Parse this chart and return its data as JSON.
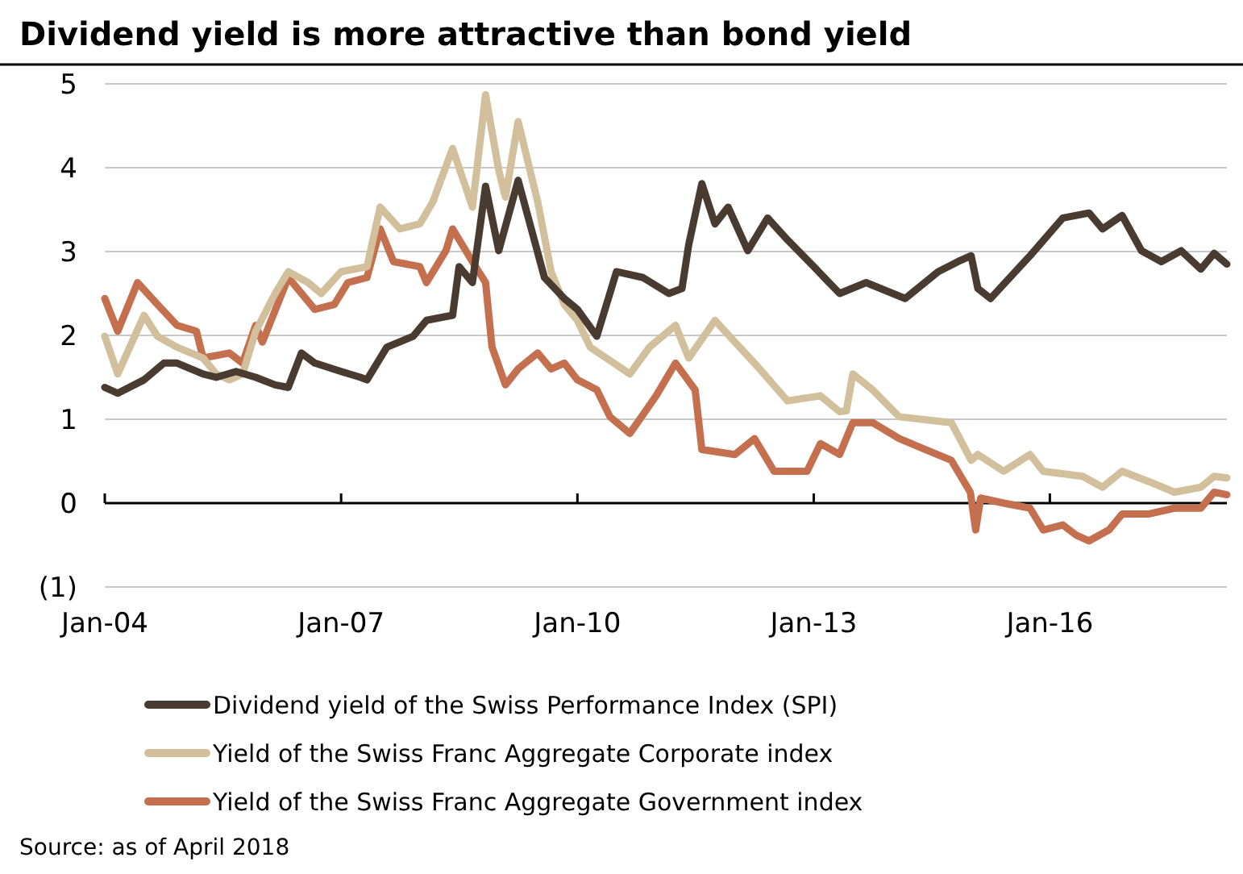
{
  "chart_data": {
    "type": "line",
    "title": "Dividend yield is more attractive than bond yield",
    "xlim": [
      "2004-01",
      "2018-04"
    ],
    "xticks": [
      {
        "value": "2004-01",
        "label": "Jan-04"
      },
      {
        "value": "2007-01",
        "label": "Jan-07"
      },
      {
        "value": "2010-01",
        "label": "Jan-10"
      },
      {
        "value": "2013-01",
        "label": "Jan-13"
      },
      {
        "value": "2016-01",
        "label": "Jan-16"
      }
    ],
    "ylim": [
      -1,
      5
    ],
    "yticks": [
      {
        "value": -1,
        "label": "(1)"
      },
      0,
      1,
      2,
      3,
      4,
      5
    ],
    "grid": "y",
    "legend": "bottom",
    "marker": "none",
    "line_style": "solid",
    "annotations": [
      "Source: as of April 2018"
    ],
    "series": [
      {
        "name": "Dividend yield of the Swiss Performance Index (SPI)",
        "color": "#4a3b30",
        "x": [
          "2004-01",
          "2004-03",
          "2004-07",
          "2004-10",
          "2004-12",
          "2005-04",
          "2005-06",
          "2005-09",
          "2005-12",
          "2006-03",
          "2006-05",
          "2006-07",
          "2006-09",
          "2007-01",
          "2007-04",
          "2007-05",
          "2007-08",
          "2007-12",
          "2008-02",
          "2008-06",
          "2008-07",
          "2008-09",
          "2008-11",
          "2009-01",
          "2009-04",
          "2009-06",
          "2009-08",
          "2009-11",
          "2010-01",
          "2010-04",
          "2010-07",
          "2010-11",
          "2011-03",
          "2011-05",
          "2011-06",
          "2011-08",
          "2011-10",
          "2011-12",
          "2012-03",
          "2012-06",
          "2012-09",
          "2013-01",
          "2013-05",
          "2013-09",
          "2014-03",
          "2014-08",
          "2014-11",
          "2015-01",
          "2015-02",
          "2015-04",
          "2015-10",
          "2016-03",
          "2016-07",
          "2016-09",
          "2016-12",
          "2017-03",
          "2017-06",
          "2017-09",
          "2017-12",
          "2018-02",
          "2018-04"
        ],
        "values": [
          1.38,
          1.31,
          1.47,
          1.67,
          1.67,
          1.54,
          1.5,
          1.57,
          1.5,
          1.41,
          1.38,
          1.79,
          1.67,
          1.57,
          1.5,
          1.47,
          1.86,
          1.99,
          2.18,
          2.24,
          2.82,
          2.63,
          3.78,
          3.01,
          3.85,
          3.27,
          2.69,
          2.44,
          2.31,
          1.99,
          2.76,
          2.69,
          2.5,
          2.56,
          3.08,
          3.81,
          3.33,
          3.53,
          3.01,
          3.4,
          3.14,
          2.82,
          2.5,
          2.63,
          2.44,
          2.76,
          2.88,
          2.95,
          2.56,
          2.44,
          2.95,
          3.4,
          3.46,
          3.27,
          3.43,
          3.01,
          2.88,
          3.01,
          2.79,
          2.98,
          2.85
        ]
      },
      {
        "name": "Yield of the Swiss Franc Aggregate Corporate index",
        "color": "#d2bf9b",
        "x": [
          "2004-01",
          "2004-03",
          "2004-07",
          "2004-09",
          "2004-12",
          "2005-04",
          "2005-06",
          "2005-08",
          "2005-10",
          "2005-12",
          "2006-03",
          "2006-05",
          "2006-08",
          "2006-10",
          "2007-01",
          "2007-05",
          "2007-07",
          "2007-10",
          "2008-01",
          "2008-03",
          "2008-06",
          "2008-09",
          "2008-11",
          "2009-01",
          "2009-02",
          "2009-04",
          "2009-07",
          "2009-09",
          "2009-11",
          "2010-01",
          "2010-03",
          "2010-09",
          "2010-12",
          "2011-04",
          "2011-06",
          "2011-10",
          "2012-01",
          "2012-04",
          "2012-09",
          "2013-02",
          "2013-05",
          "2013-06",
          "2013-07",
          "2013-10",
          "2014-02",
          "2014-10",
          "2015-01",
          "2015-02",
          "2015-06",
          "2015-10",
          "2015-12",
          "2016-06",
          "2016-09",
          "2016-12",
          "2017-04",
          "2017-08",
          "2017-12",
          "2018-02",
          "2018-04"
        ],
        "values": [
          1.99,
          1.54,
          2.24,
          1.99,
          1.86,
          1.73,
          1.54,
          1.47,
          1.54,
          2.05,
          2.5,
          2.76,
          2.63,
          2.5,
          2.76,
          2.82,
          3.53,
          3.27,
          3.33,
          3.59,
          4.23,
          3.53,
          4.87,
          3.97,
          3.65,
          4.55,
          3.59,
          2.76,
          2.37,
          2.18,
          1.86,
          1.54,
          1.86,
          2.12,
          1.73,
          2.18,
          1.92,
          1.67,
          1.22,
          1.28,
          1.09,
          1.1,
          1.54,
          1.35,
          1.03,
          0.96,
          0.51,
          0.58,
          0.38,
          0.58,
          0.38,
          0.32,
          0.19,
          0.38,
          0.26,
          0.13,
          0.19,
          0.32,
          0.3
        ]
      },
      {
        "name": "Yield of the Swiss Franc Aggregate Government index",
        "color": "#c4704f",
        "x": [
          "2004-01",
          "2004-03",
          "2004-06",
          "2004-09",
          "2004-12",
          "2005-03",
          "2005-04",
          "2005-08",
          "2005-10",
          "2005-12",
          "2006-01",
          "2006-05",
          "2006-09",
          "2006-12",
          "2007-02",
          "2007-05",
          "2007-07",
          "2007-09",
          "2008-01",
          "2008-02",
          "2008-05",
          "2008-06",
          "2008-09",
          "2008-11",
          "2008-12",
          "2009-02",
          "2009-04",
          "2009-07",
          "2009-09",
          "2009-11",
          "2010-01",
          "2010-04",
          "2010-06",
          "2010-09",
          "2011-01",
          "2011-04",
          "2011-07",
          "2011-08",
          "2012-01",
          "2012-04",
          "2012-07",
          "2012-12",
          "2013-02",
          "2013-05",
          "2013-07",
          "2013-10",
          "2014-02",
          "2014-06",
          "2014-10",
          "2014-12-28",
          "2015-01-22",
          "2015-02-14",
          "2015-06",
          "2015-10",
          "2015-12",
          "2016-03",
          "2016-05",
          "2016-07",
          "2016-10",
          "2016-12",
          "2017-04",
          "2017-08",
          "2017-12",
          "2018-02",
          "2018-04"
        ],
        "values": [
          2.44,
          2.05,
          2.63,
          2.37,
          2.12,
          2.05,
          1.73,
          1.79,
          1.67,
          2.12,
          1.92,
          2.69,
          2.31,
          2.37,
          2.63,
          2.69,
          3.27,
          2.88,
          2.82,
          2.63,
          3.01,
          3.27,
          2.88,
          2.63,
          1.86,
          1.41,
          1.6,
          1.79,
          1.6,
          1.67,
          1.47,
          1.35,
          1.03,
          0.83,
          1.28,
          1.67,
          1.35,
          0.64,
          0.58,
          0.77,
          0.38,
          0.38,
          0.71,
          0.58,
          0.96,
          0.96,
          0.77,
          0.64,
          0.51,
          0.13,
          -0.32,
          0.06,
          0,
          -0.06,
          -0.32,
          -0.26,
          -0.38,
          -0.45,
          -0.32,
          -0.13,
          -0.13,
          -0.06,
          -0.06,
          0.13,
          0.1
        ]
      }
    ]
  }
}
